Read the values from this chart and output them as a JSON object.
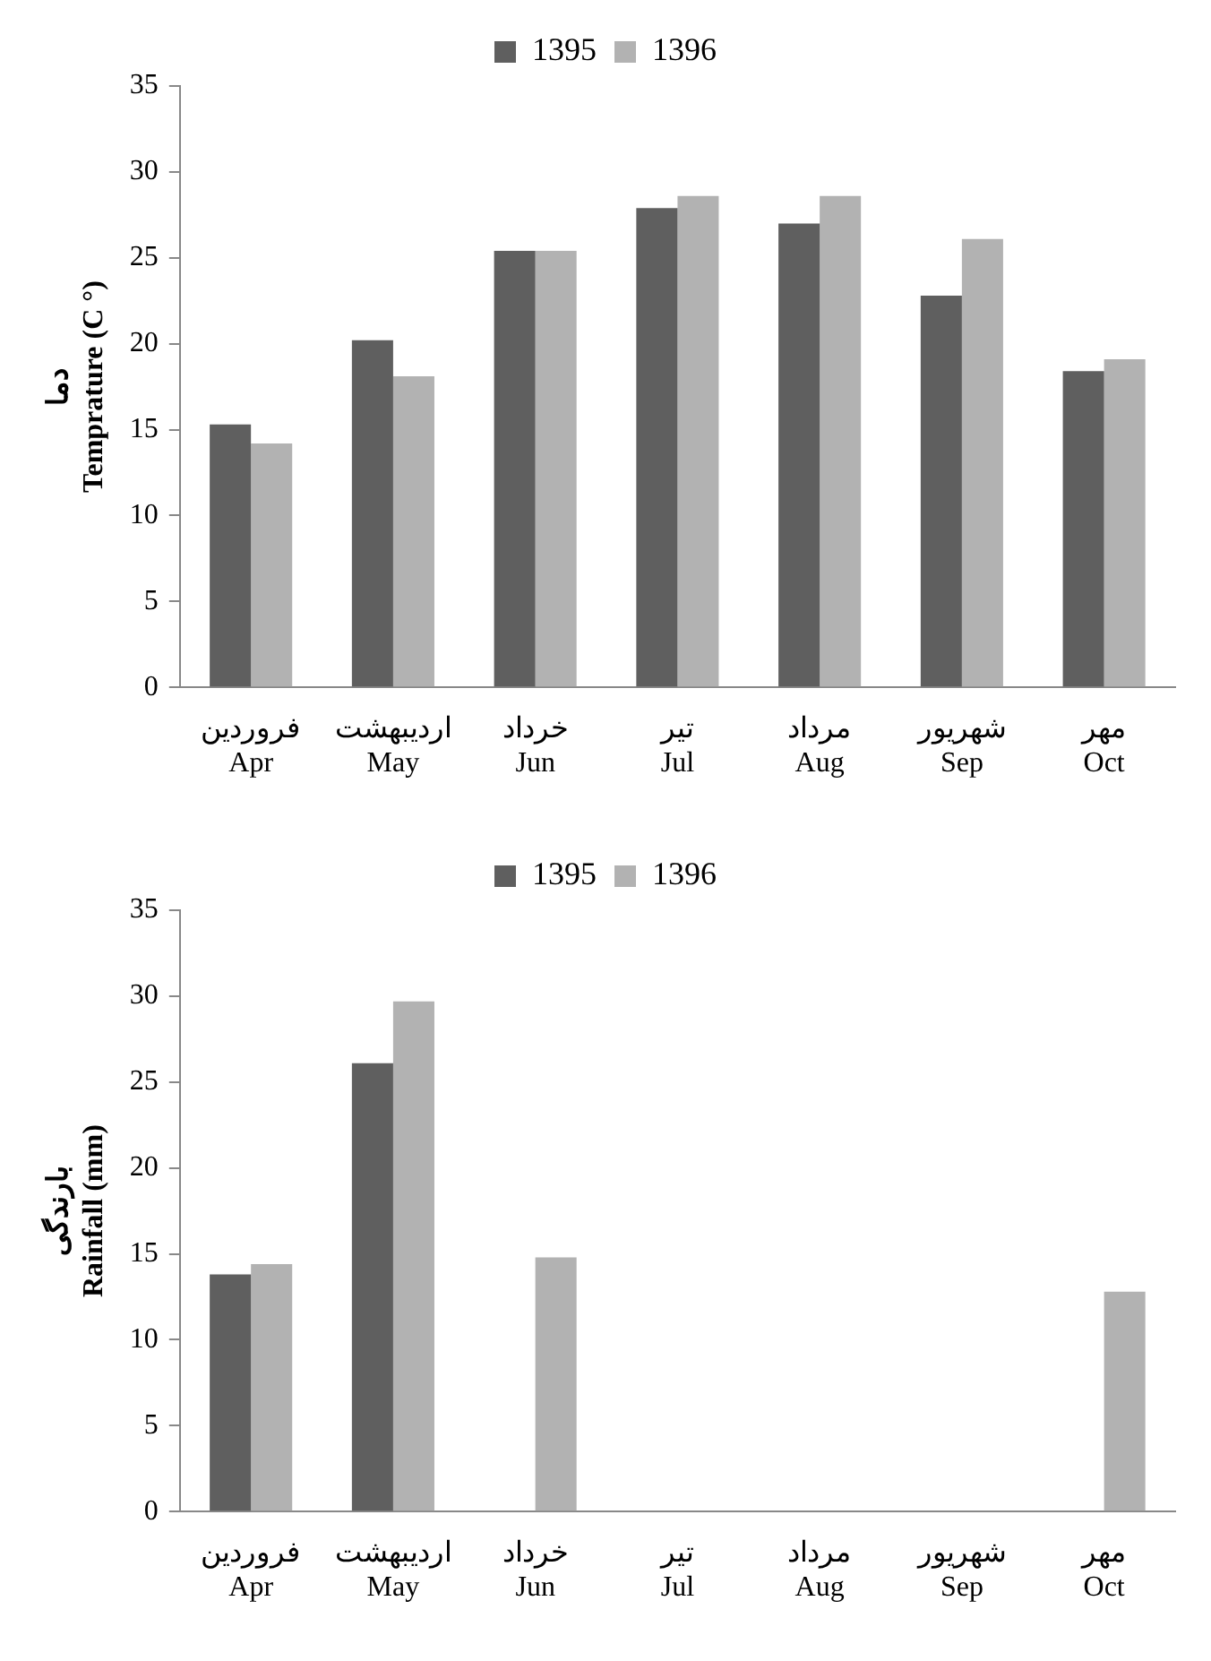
{
  "chart_data": [
    {
      "type": "bar",
      "ylabel": "دما\nTemprature (C °)",
      "categories": [
        "فروردین\nApr",
        "اردیبهشت\nMay",
        "خرداد\nJun",
        "تیر\nJul",
        "مرداد\nAug",
        "شهریور\nSep",
        "مهر\nOct"
      ],
      "series": [
        {
          "name": "1395",
          "color": "#5f5f5f",
          "values": [
            15.3,
            20.2,
            25.4,
            27.9,
            27.0,
            22.8,
            18.4
          ]
        },
        {
          "name": "1396",
          "color": "#b2b2b2",
          "values": [
            14.2,
            18.1,
            25.4,
            28.6,
            28.6,
            26.1,
            19.1
          ]
        }
      ],
      "ylim": [
        0,
        35
      ],
      "yticks": [
        0,
        5,
        10,
        15,
        20,
        25,
        30,
        35
      ],
      "grid": false,
      "legend": "top"
    },
    {
      "type": "bar",
      "ylabel": "بارندگی\nRainfall (mm)",
      "categories": [
        "فروردین\nApr",
        "اردیبهشت\nMay",
        "خرداد\nJun",
        "تیر\nJul",
        "مرداد\nAug",
        "شهریور\nSep",
        "مهر\nOct"
      ],
      "series": [
        {
          "name": "1395",
          "color": "#5f5f5f",
          "values": [
            13.8,
            26.1,
            0,
            0,
            0,
            0,
            0
          ]
        },
        {
          "name": "1396",
          "color": "#b2b2b2",
          "values": [
            14.4,
            29.7,
            14.8,
            0,
            0,
            0,
            12.8
          ]
        }
      ],
      "ylim": [
        0,
        35
      ],
      "yticks": [
        0,
        5,
        10,
        15,
        20,
        25,
        30,
        35
      ],
      "grid": false,
      "legend": "top"
    }
  ]
}
